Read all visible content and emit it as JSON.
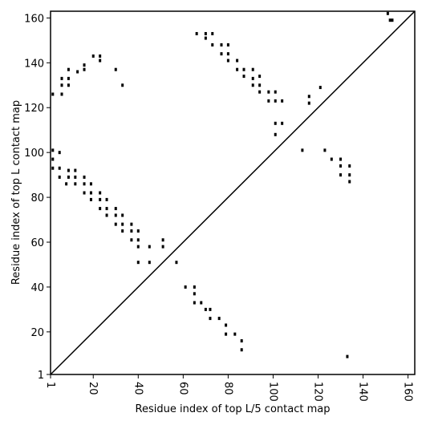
{
  "chart_data": {
    "type": "scatter",
    "xlabel": "Residue index of top L/5 contact map",
    "ylabel": "Residue index of top L contact map",
    "color": "#000000",
    "xlim": [
      1,
      163
    ],
    "ylim": [
      1,
      163
    ],
    "xticks": [
      1,
      20,
      40,
      60,
      80,
      100,
      120,
      140,
      160
    ],
    "yticks": [
      1,
      20,
      40,
      60,
      80,
      100,
      120,
      140,
      160
    ],
    "x": [
      2,
      2,
      2,
      2,
      5,
      5,
      5,
      6,
      6,
      6,
      9,
      9,
      9,
      9,
      9,
      8,
      12,
      12,
      12,
      13,
      16,
      16,
      16,
      16,
      16,
      19,
      19,
      19,
      20,
      23,
      23,
      23,
      23,
      23,
      26,
      26,
      26,
      30,
      30,
      30,
      30,
      33,
      33,
      33,
      33,
      37,
      37,
      37,
      40,
      40,
      40,
      40,
      45,
      45,
      51,
      51,
      57,
      66,
      70,
      70,
      73,
      73,
      77,
      77,
      80,
      80,
      80,
      84,
      84,
      87,
      87,
      91,
      91,
      91,
      94,
      94,
      94,
      98,
      98,
      101,
      101,
      101,
      101,
      104,
      104,
      116,
      116,
      121,
      113,
      123,
      126,
      130,
      130,
      130,
      134,
      134,
      134,
      151,
      152,
      153,
      61,
      65,
      65,
      65,
      68,
      70,
      72,
      72,
      76,
      79,
      79,
      83,
      86,
      86,
      133
    ],
    "y": [
      126,
      93,
      97,
      101,
      100,
      93,
      89,
      133,
      130,
      126,
      137,
      130,
      133,
      92,
      89,
      86,
      92,
      89,
      86,
      136,
      139,
      137,
      89,
      86,
      82,
      86,
      82,
      79,
      143,
      143,
      141,
      82,
      79,
      75,
      79,
      75,
      72,
      75,
      72,
      68,
      137,
      130,
      72,
      68,
      65,
      68,
      65,
      61,
      65,
      61,
      58,
      51,
      58,
      51,
      61,
      58,
      51,
      153,
      153,
      151,
      153,
      148,
      148,
      144,
      148,
      144,
      141,
      141,
      137,
      137,
      134,
      137,
      133,
      130,
      134,
      130,
      127,
      127,
      123,
      127,
      123,
      113,
      108,
      123,
      113,
      125,
      122,
      129,
      101,
      101,
      97,
      97,
      94,
      90,
      94,
      90,
      87,
      162,
      159,
      159,
      40,
      40,
      37,
      33,
      33,
      30,
      30,
      26,
      26,
      23,
      19,
      19,
      16,
      12,
      9
    ]
  }
}
